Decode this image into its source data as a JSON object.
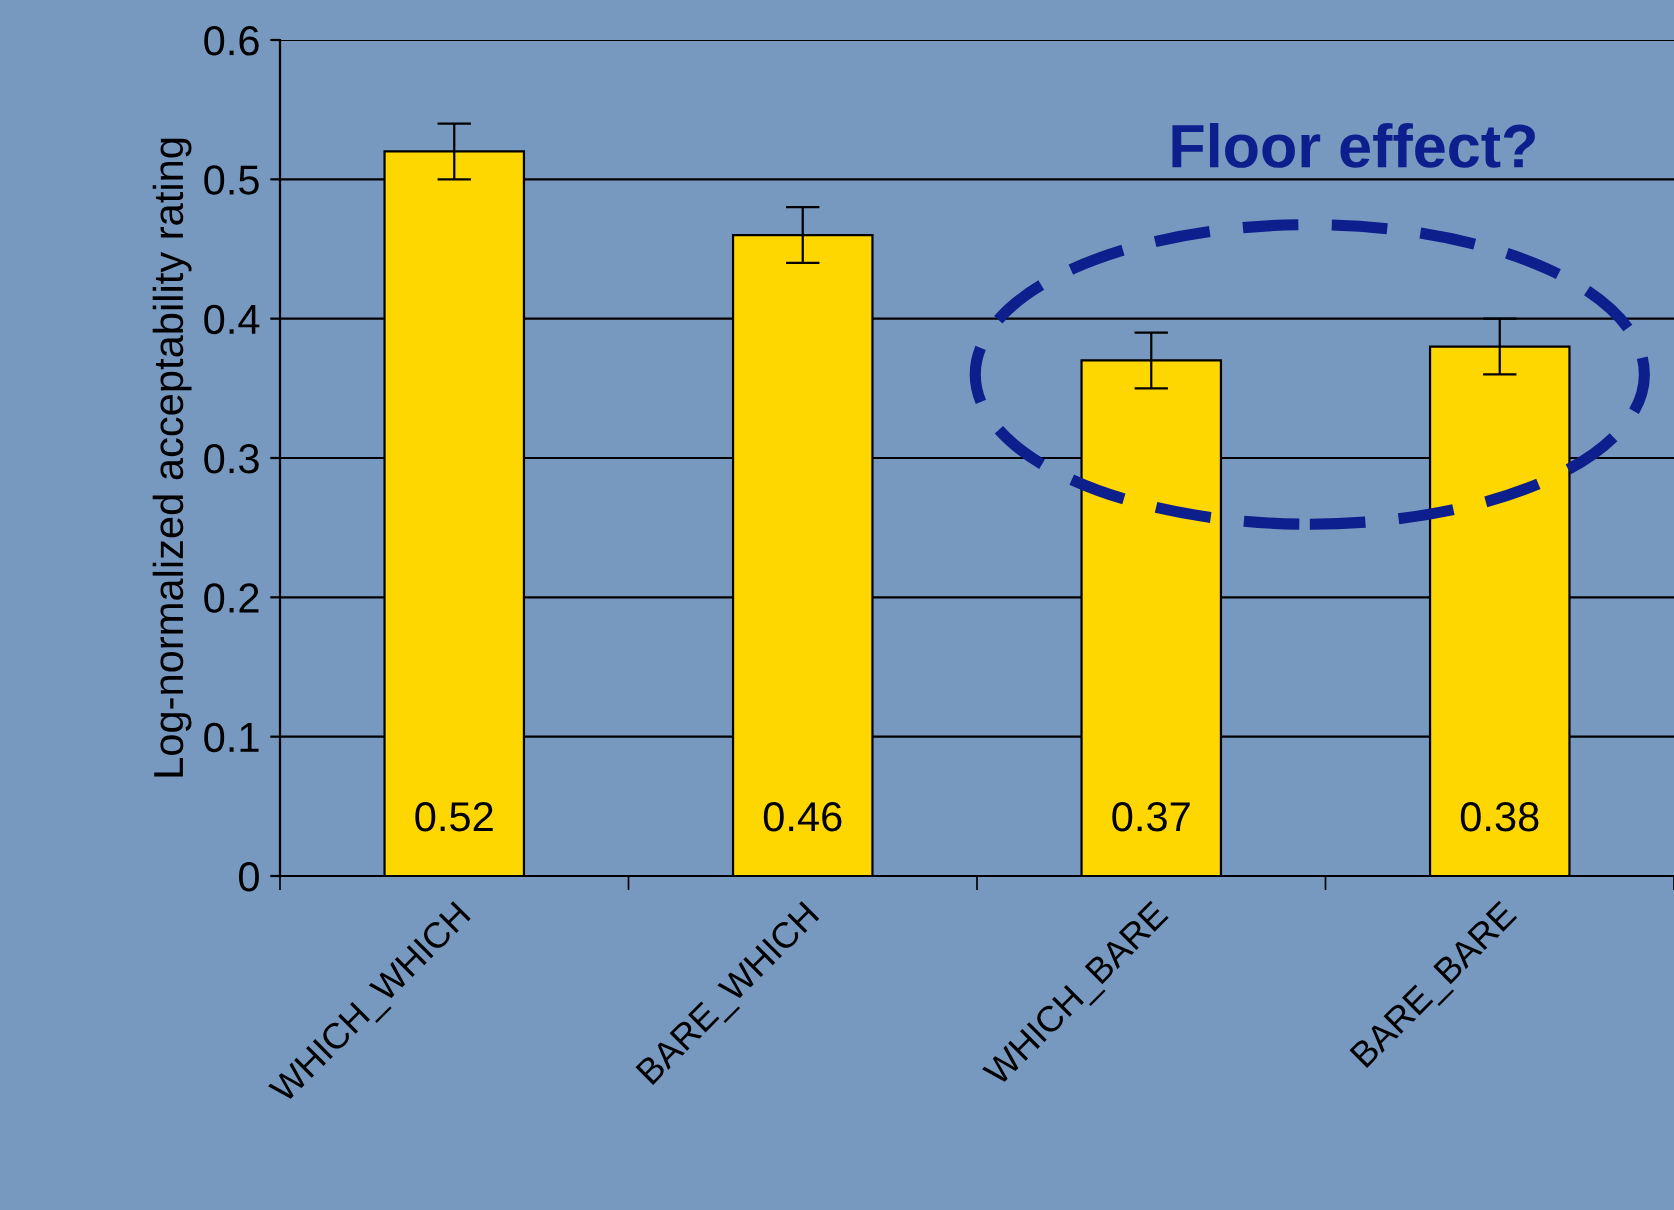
{
  "chart_data": {
    "type": "bar",
    "ylabel": "Log-normalized acceptability rating",
    "categories": [
      "WHICH_WHICH",
      "BARE_WHICH",
      "WHICH_BARE",
      "BARE_BARE"
    ],
    "values": [
      0.52,
      0.46,
      0.37,
      0.38
    ],
    "errors": [
      0.02,
      0.02,
      0.02,
      0.02
    ],
    "color": "#ffd700",
    "data_labels": true,
    "ylim": [
      0,
      0.6
    ],
    "yticks": [
      0,
      0.1,
      0.2,
      0.3,
      0.4,
      0.5,
      0.6
    ],
    "grid": "y",
    "annotations": [
      "Floor effect?"
    ]
  }
}
